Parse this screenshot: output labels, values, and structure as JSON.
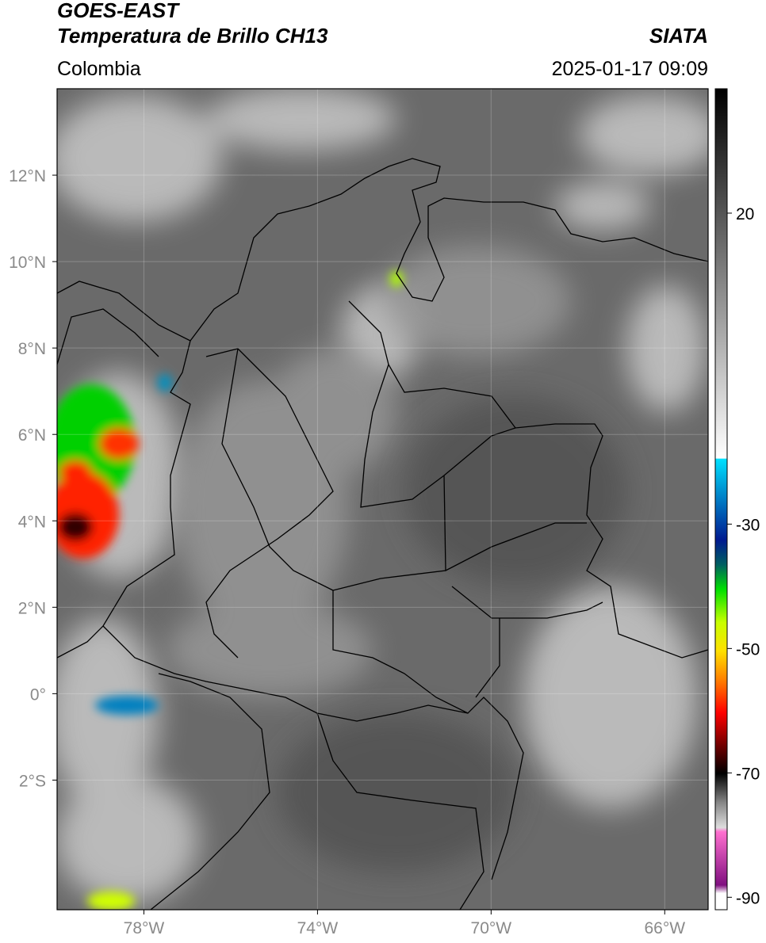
{
  "header": {
    "title": "GOES-EAST",
    "subtitle": "Temperatura de Brillo CH13",
    "source": "SIATA",
    "region": "Colombia",
    "datetime": "2025-01-17 09:09"
  },
  "map": {
    "lon_range": [
      -80,
      -65
    ],
    "lat_range": [
      -5,
      14
    ],
    "grid": true,
    "lon_ticks": [
      {
        "value": -78,
        "label": "78°W"
      },
      {
        "value": -74,
        "label": "74°W"
      },
      {
        "value": -70,
        "label": "70°W"
      },
      {
        "value": -66,
        "label": "66°W"
      }
    ],
    "lat_ticks": [
      {
        "value": 12,
        "label": "12°N"
      },
      {
        "value": 10,
        "label": "10°N"
      },
      {
        "value": 8,
        "label": "8°N"
      },
      {
        "value": 6,
        "label": "6°N"
      },
      {
        "value": 4,
        "label": "4°N"
      },
      {
        "value": 2,
        "label": "2°N"
      },
      {
        "value": 0,
        "label": "0°"
      },
      {
        "value": -2,
        "label": "2°S"
      }
    ]
  },
  "colorbar": {
    "range": [
      -92,
      40
    ],
    "ticks": [
      20,
      -30,
      -50,
      -70,
      -90
    ]
  }
}
